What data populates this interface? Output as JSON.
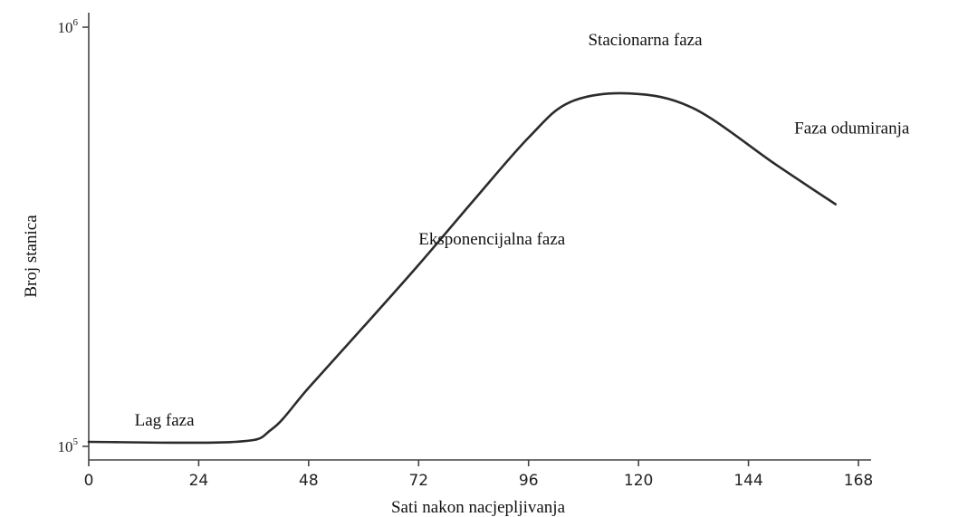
{
  "chart_data": {
    "type": "line",
    "title": "",
    "xlabel": "Sati nakon nacjepljivanja",
    "ylabel": "Broj stanica",
    "x_ticks": [
      0,
      24,
      48,
      72,
      96,
      120,
      144,
      168
    ],
    "xlim": [
      0,
      168
    ],
    "y_scale": "log",
    "y_ticks": [
      {
        "base": "10",
        "exponent": "5",
        "value": 100000
      },
      {
        "base": "10",
        "exponent": "6",
        "value": 1000000
      }
    ],
    "ylim": [
      100000,
      1000000
    ],
    "grid": false,
    "legend": "none",
    "series": [
      {
        "x": [
          0,
          32,
          40,
          48,
          60,
          72,
          84,
          96,
          105,
          118,
          132,
          150,
          163
        ],
        "y": [
          102500,
          102500,
          110000,
          138000,
          193000,
          271000,
          386000,
          545000,
          662000,
          695000,
          640000,
          470000,
          378000
        ]
      }
    ],
    "annotations": [
      {
        "text": "Lag faza",
        "x": 10,
        "y": 112000
      },
      {
        "text": "Eksponencijalna faza",
        "x": 72,
        "y": 303000
      },
      {
        "text": "Stacionarna faza",
        "x": 109,
        "y": 905000
      },
      {
        "text": "Faza odumiranja",
        "x": 154,
        "y": 557000
      }
    ]
  }
}
